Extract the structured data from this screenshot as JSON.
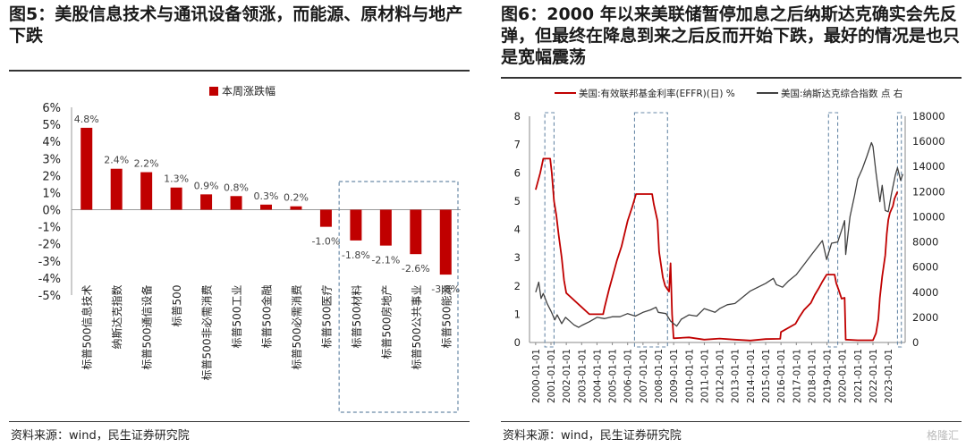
{
  "left": {
    "title": "图5：美股信息技术与通讯设备领涨，而能源、原材料与地产下跌",
    "source": "资料来源：wind，民生证券研究院",
    "chart_data": {
      "type": "bar",
      "legend": "本周涨跌幅",
      "categories": [
        "标普500信息技术",
        "纳斯达克指数",
        "标普500通信设备",
        "标普500",
        "标普500非必需消费",
        "标普500工业",
        "标普500金融",
        "标普500必需消费",
        "标普500医疗",
        "标普500材料",
        "标普500房地产",
        "标普500公共事业",
        "标普500能源"
      ],
      "values": [
        4.8,
        2.4,
        2.2,
        1.3,
        0.9,
        0.8,
        0.3,
        0.2,
        -1.0,
        -1.8,
        -2.1,
        -2.6,
        -3.8
      ],
      "value_labels": [
        "4.8%",
        "2.4%",
        "2.2%",
        "1.3%",
        "0.9%",
        "0.8%",
        "0.3%",
        "0.2%",
        "-1.0%",
        "-1.8%",
        "-2.1%",
        "-2.6%",
        "-3.8%"
      ],
      "yticks": [
        "6%",
        "5%",
        "4%",
        "3%",
        "2%",
        "1%",
        "0%",
        "-1%",
        "-2%",
        "-3%",
        "-4%",
        "-5%"
      ],
      "ylim": [
        -5,
        6
      ],
      "color": "#c00000",
      "highlight_box_categories": [
        "标普500材料",
        "标普500房地产",
        "标普500公共事业",
        "标普500能源"
      ]
    }
  },
  "right": {
    "title": "图6：2000 年以来美联储暂停加息之后纳斯达克确实会先反弹，但最终在降息到来之后反而开始下跌，最好的情况是也只是宽幅震荡",
    "source": "资料来源：wind，民生证券研究院",
    "logo": "格隆汇",
    "chart_data": {
      "type": "line",
      "series": [
        {
          "name": "美国:有效联邦基金利率(EFFR)(日) %",
          "axis": "left",
          "color": "#c00000",
          "points": [
            [
              2000.0,
              5.4
            ],
            [
              2000.3,
              6.0
            ],
            [
              2000.5,
              6.5
            ],
            [
              2000.7,
              6.5
            ],
            [
              2000.95,
              6.5
            ],
            [
              2001.05,
              6.0
            ],
            [
              2001.2,
              5.0
            ],
            [
              2001.35,
              4.5
            ],
            [
              2001.5,
              3.8
            ],
            [
              2001.7,
              3.0
            ],
            [
              2001.85,
              2.2
            ],
            [
              2002.0,
              1.75
            ],
            [
              2002.9,
              1.3
            ],
            [
              2003.5,
              1.0
            ],
            [
              2004.4,
              1.0
            ],
            [
              2004.5,
              1.25
            ],
            [
              2004.8,
              1.9
            ],
            [
              2005.0,
              2.3
            ],
            [
              2005.3,
              2.9
            ],
            [
              2005.6,
              3.4
            ],
            [
              2006.0,
              4.3
            ],
            [
              2006.3,
              4.8
            ],
            [
              2006.55,
              5.25
            ],
            [
              2007.0,
              5.25
            ],
            [
              2007.6,
              5.25
            ],
            [
              2007.7,
              4.9
            ],
            [
              2007.95,
              4.3
            ],
            [
              2008.05,
              3.2
            ],
            [
              2008.3,
              2.3
            ],
            [
              2008.45,
              2.0
            ],
            [
              2008.7,
              1.8
            ],
            [
              2008.8,
              2.8
            ],
            [
              2008.9,
              1.0
            ],
            [
              2009.0,
              0.15
            ],
            [
              2010.0,
              0.18
            ],
            [
              2011.0,
              0.1
            ],
            [
              2012.0,
              0.14
            ],
            [
              2013.0,
              0.1
            ],
            [
              2014.0,
              0.07
            ],
            [
              2015.0,
              0.12
            ],
            [
              2015.95,
              0.13
            ],
            [
              2016.0,
              0.37
            ],
            [
              2016.95,
              0.66
            ],
            [
              2017.2,
              0.9
            ],
            [
              2017.5,
              1.15
            ],
            [
              2017.95,
              1.4
            ],
            [
              2018.2,
              1.68
            ],
            [
              2018.45,
              1.9
            ],
            [
              2018.7,
              2.15
            ],
            [
              2018.98,
              2.4
            ],
            [
              2019.5,
              2.4
            ],
            [
              2019.6,
              2.1
            ],
            [
              2019.8,
              1.8
            ],
            [
              2019.95,
              1.55
            ],
            [
              2020.15,
              1.58
            ],
            [
              2020.22,
              0.1
            ],
            [
              2021.0,
              0.08
            ],
            [
              2022.0,
              0.08
            ],
            [
              2022.2,
              0.33
            ],
            [
              2022.35,
              0.83
            ],
            [
              2022.45,
              1.58
            ],
            [
              2022.6,
              2.33
            ],
            [
              2022.8,
              3.08
            ],
            [
              2022.9,
              3.83
            ],
            [
              2023.0,
              4.33
            ],
            [
              2023.1,
              4.58
            ],
            [
              2023.3,
              4.83
            ],
            [
              2023.4,
              5.08
            ],
            [
              2023.6,
              5.33
            ]
          ]
        },
        {
          "name": "美国:纳斯达克综合指数 点 右",
          "axis": "right",
          "color": "#404040",
          "points": [
            [
              2000.0,
              4000
            ],
            [
              2000.2,
              4800
            ],
            [
              2000.35,
              3500
            ],
            [
              2000.5,
              3900
            ],
            [
              2000.75,
              3100
            ],
            [
              2001.0,
              2500
            ],
            [
              2001.25,
              1800
            ],
            [
              2001.4,
              2200
            ],
            [
              2001.7,
              1500
            ],
            [
              2001.95,
              2000
            ],
            [
              2002.5,
              1400
            ],
            [
              2002.8,
              1200
            ],
            [
              2003.0,
              1350
            ],
            [
              2003.5,
              1650
            ],
            [
              2004.0,
              2000
            ],
            [
              2004.5,
              1900
            ],
            [
              2005.0,
              2050
            ],
            [
              2005.5,
              2050
            ],
            [
              2006.0,
              2300
            ],
            [
              2006.5,
              2100
            ],
            [
              2007.0,
              2400
            ],
            [
              2007.5,
              2600
            ],
            [
              2007.85,
              2800
            ],
            [
              2008.0,
              2400
            ],
            [
              2008.5,
              2300
            ],
            [
              2008.8,
              1700
            ],
            [
              2009.0,
              1500
            ],
            [
              2009.2,
              1300
            ],
            [
              2009.5,
              1850
            ],
            [
              2010.0,
              2200
            ],
            [
              2010.5,
              2100
            ],
            [
              2011.0,
              2700
            ],
            [
              2011.7,
              2400
            ],
            [
              2012.0,
              2700
            ],
            [
              2012.5,
              3000
            ],
            [
              2013.0,
              3100
            ],
            [
              2013.5,
              3600
            ],
            [
              2014.0,
              4100
            ],
            [
              2014.5,
              4400
            ],
            [
              2015.0,
              4700
            ],
            [
              2015.5,
              5100
            ],
            [
              2015.7,
              4600
            ],
            [
              2016.1,
              4400
            ],
            [
              2016.5,
              4900
            ],
            [
              2017.0,
              5400
            ],
            [
              2017.5,
              6200
            ],
            [
              2018.0,
              7000
            ],
            [
              2018.7,
              8100
            ],
            [
              2018.98,
              6600
            ],
            [
              2019.3,
              7900
            ],
            [
              2019.7,
              8000
            ],
            [
              2020.0,
              9100
            ],
            [
              2020.15,
              9700
            ],
            [
              2020.22,
              7000
            ],
            [
              2020.5,
              10000
            ],
            [
              2020.8,
              11700
            ],
            [
              2021.0,
              13000
            ],
            [
              2021.3,
              13800
            ],
            [
              2021.6,
              14800
            ],
            [
              2021.9,
              15900
            ],
            [
              2022.0,
              15600
            ],
            [
              2022.2,
              13500
            ],
            [
              2022.45,
              11200
            ],
            [
              2022.6,
              12500
            ],
            [
              2022.8,
              10500
            ],
            [
              2023.0,
              10400
            ],
            [
              2023.2,
              11800
            ],
            [
              2023.45,
              13300
            ],
            [
              2023.6,
              13900
            ],
            [
              2023.8,
              12900
            ],
            [
              2023.95,
              13400
            ]
          ]
        }
      ],
      "y_left_ticks": [
        "0",
        "1",
        "2",
        "3",
        "4",
        "5",
        "6",
        "7",
        "8"
      ],
      "y_left_lim": [
        0,
        8
      ],
      "y_right_ticks": [
        "0",
        "2000",
        "4000",
        "6000",
        "8000",
        "10000",
        "12000",
        "14000",
        "16000",
        "18000"
      ],
      "y_right_lim": [
        0,
        18000
      ],
      "x_ticks": [
        "2000-01-01",
        "2001-01-01",
        "2002-01-01",
        "2003-01-01",
        "2004-01-01",
        "2005-01-01",
        "2006-01-01",
        "2007-01-01",
        "2008-01-01",
        "2009-01-01",
        "2010-01-01",
        "2011-01-01",
        "2012-01-01",
        "2013-01-01",
        "2014-01-01",
        "2015-01-01",
        "2016-01-01",
        "2017-01-01",
        "2018-01-01",
        "2019-01-01",
        "2020-01-01",
        "2021-01-01",
        "2022-01-01",
        "2023-01-01"
      ],
      "x_lim": [
        1999.6,
        2024.1
      ],
      "highlight_periods": [
        [
          2000.6,
          2001.2
        ],
        [
          2006.45,
          2008.6
        ],
        [
          2019.1,
          2019.7
        ],
        [
          2023.6,
          2023.85
        ]
      ]
    }
  }
}
